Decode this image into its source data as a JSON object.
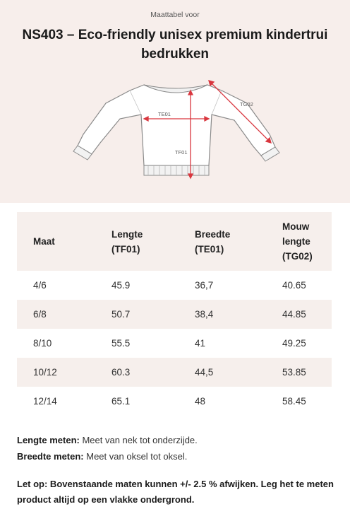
{
  "header": {
    "subtitle": "Maattabel voor",
    "title": "NS403 – Eco-friendly unisex premium kindertrui bedrukken"
  },
  "diagram": {
    "labels": {
      "width": "TE01",
      "length": "TF01",
      "sleeve": "TG02"
    },
    "arrow_color": "#d9363e"
  },
  "table": {
    "headers": {
      "size": "Maat",
      "length_line1": "Lengte",
      "length_line2": "(TF01)",
      "width_line1": "Breedte",
      "width_line2": "(TE01)",
      "sleeve_line1": "Mouw",
      "sleeve_line2": "lengte",
      "sleeve_line3": "(TG02)"
    },
    "rows": [
      {
        "size": "4/6",
        "length": "45.9",
        "width": "36,7",
        "sleeve": "40.65"
      },
      {
        "size": "6/8",
        "length": "50.7",
        "width": "38,4",
        "sleeve": "44.85"
      },
      {
        "size": "8/10",
        "length": "55.5",
        "width": "41",
        "sleeve": "49.25"
      },
      {
        "size": "10/12",
        "length": "60.3",
        "width": "44,5",
        "sleeve": "53.85"
      },
      {
        "size": "12/14",
        "length": "65.1",
        "width": "48",
        "sleeve": "58.45"
      }
    ]
  },
  "notes": {
    "length_label": "Lengte meten:",
    "length_text": " Meet van nek tot onderzijde.",
    "width_label": "Breedte meten:",
    "width_text": " Meet van oksel tot oksel.",
    "warning": "Let op: Bovenstaande maten kunnen +/- 2.5 % afwijken. Leg het te meten product altijd op een vlakke ondergrond."
  }
}
